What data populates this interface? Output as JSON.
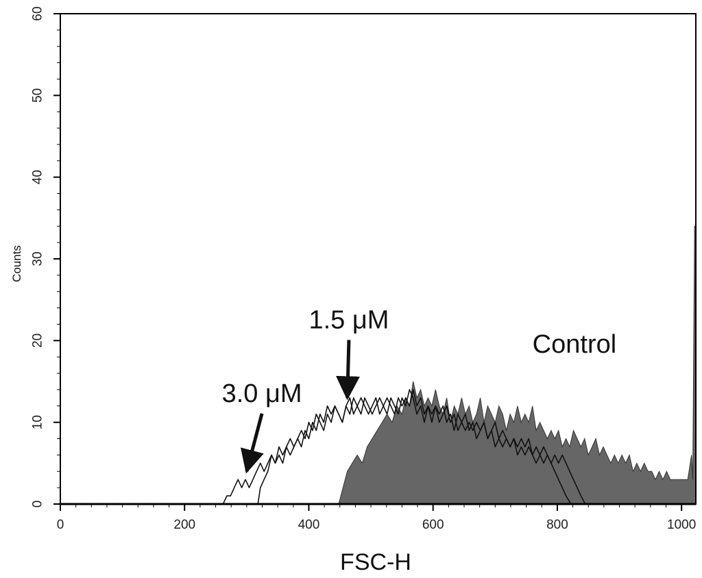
{
  "chart_data": {
    "type": "area",
    "xlabel": "FSC-H",
    "ylabel": "Counts",
    "xlim": [
      0,
      1023
    ],
    "ylim": [
      0,
      60
    ],
    "x_ticks": [
      0,
      200,
      400,
      600,
      800,
      1000
    ],
    "y_ticks": [
      0,
      10,
      20,
      30,
      40,
      50,
      60
    ],
    "grid": false,
    "legend": "none",
    "series": [
      {
        "name": "Control",
        "style": "filled",
        "color": "#666666",
        "points": [
          [
            448,
            0
          ],
          [
            455,
            2
          ],
          [
            462,
            4
          ],
          [
            470,
            5
          ],
          [
            478,
            6
          ],
          [
            486,
            5
          ],
          [
            494,
            7
          ],
          [
            502,
            8
          ],
          [
            510,
            9
          ],
          [
            518,
            10
          ],
          [
            526,
            11
          ],
          [
            534,
            10
          ],
          [
            542,
            12
          ],
          [
            550,
            11
          ],
          [
            556,
            13
          ],
          [
            562,
            12
          ],
          [
            568,
            15
          ],
          [
            574,
            13
          ],
          [
            580,
            14
          ],
          [
            586,
            12
          ],
          [
            592,
            13
          ],
          [
            598,
            12
          ],
          [
            604,
            14
          ],
          [
            610,
            12
          ],
          [
            616,
            11
          ],
          [
            622,
            13
          ],
          [
            628,
            10
          ],
          [
            634,
            12
          ],
          [
            640,
            11
          ],
          [
            646,
            13
          ],
          [
            652,
            11
          ],
          [
            658,
            12
          ],
          [
            664,
            10
          ],
          [
            670,
            11
          ],
          [
            676,
            13
          ],
          [
            682,
            10
          ],
          [
            688,
            12
          ],
          [
            694,
            11
          ],
          [
            700,
            10
          ],
          [
            706,
            12
          ],
          [
            712,
            11
          ],
          [
            718,
            9
          ],
          [
            724,
            11
          ],
          [
            730,
            10
          ],
          [
            736,
            12
          ],
          [
            742,
            10
          ],
          [
            748,
            11
          ],
          [
            754,
            10
          ],
          [
            760,
            12
          ],
          [
            766,
            9
          ],
          [
            772,
            10
          ],
          [
            778,
            9
          ],
          [
            784,
            8
          ],
          [
            790,
            9
          ],
          [
            796,
            8
          ],
          [
            802,
            9
          ],
          [
            808,
            7
          ],
          [
            814,
            8
          ],
          [
            820,
            7
          ],
          [
            826,
            9
          ],
          [
            832,
            8
          ],
          [
            838,
            7
          ],
          [
            844,
            8
          ],
          [
            850,
            6
          ],
          [
            856,
            7
          ],
          [
            862,
            8
          ],
          [
            868,
            6
          ],
          [
            874,
            7
          ],
          [
            880,
            6
          ],
          [
            886,
            5
          ],
          [
            892,
            6
          ],
          [
            898,
            5
          ],
          [
            904,
            6
          ],
          [
            910,
            5
          ],
          [
            916,
            6
          ],
          [
            922,
            4
          ],
          [
            928,
            5
          ],
          [
            934,
            4
          ],
          [
            940,
            5
          ],
          [
            946,
            4
          ],
          [
            952,
            4
          ],
          [
            958,
            3
          ],
          [
            964,
            4
          ],
          [
            970,
            3
          ],
          [
            976,
            4
          ],
          [
            982,
            3
          ],
          [
            988,
            3
          ],
          [
            994,
            3
          ],
          [
            1000,
            3
          ],
          [
            1010,
            3
          ],
          [
            1016,
            6
          ],
          [
            1018,
            3
          ],
          [
            1021,
            34
          ],
          [
            1023,
            34
          ],
          [
            1023,
            0
          ]
        ]
      },
      {
        "name": "1.5 μM",
        "style": "line",
        "color": "#111111",
        "points": [
          [
            318,
            0
          ],
          [
            322,
            2
          ],
          [
            328,
            3
          ],
          [
            334,
            4
          ],
          [
            340,
            6
          ],
          [
            346,
            5
          ],
          [
            352,
            7
          ],
          [
            358,
            6
          ],
          [
            364,
            7
          ],
          [
            370,
            8
          ],
          [
            376,
            7
          ],
          [
            382,
            8
          ],
          [
            388,
            9
          ],
          [
            394,
            8
          ],
          [
            400,
            10
          ],
          [
            406,
            9
          ],
          [
            412,
            11
          ],
          [
            418,
            10
          ],
          [
            424,
            9
          ],
          [
            430,
            11
          ],
          [
            436,
            10
          ],
          [
            442,
            12
          ],
          [
            448,
            11
          ],
          [
            454,
            10
          ],
          [
            460,
            12
          ],
          [
            466,
            13
          ],
          [
            472,
            11
          ],
          [
            478,
            12
          ],
          [
            484,
            13
          ],
          [
            490,
            12
          ],
          [
            496,
            11
          ],
          [
            502,
            12
          ],
          [
            508,
            13
          ],
          [
            514,
            11
          ],
          [
            520,
            12
          ],
          [
            526,
            13
          ],
          [
            532,
            12
          ],
          [
            538,
            11
          ],
          [
            544,
            13
          ],
          [
            550,
            12
          ],
          [
            556,
            13
          ],
          [
            562,
            12
          ],
          [
            568,
            14
          ],
          [
            574,
            12
          ],
          [
            580,
            13
          ],
          [
            586,
            11
          ],
          [
            592,
            12
          ],
          [
            598,
            10
          ],
          [
            604,
            12
          ],
          [
            610,
            11
          ],
          [
            616,
            12
          ],
          [
            622,
            10
          ],
          [
            628,
            11
          ],
          [
            634,
            9
          ],
          [
            640,
            11
          ],
          [
            646,
            10
          ],
          [
            652,
            9
          ],
          [
            658,
            10
          ],
          [
            664,
            9
          ],
          [
            670,
            10
          ],
          [
            676,
            9
          ],
          [
            682,
            10
          ],
          [
            688,
            8
          ],
          [
            694,
            9
          ],
          [
            700,
            10
          ],
          [
            706,
            8
          ],
          [
            712,
            9
          ],
          [
            718,
            8
          ],
          [
            724,
            7
          ],
          [
            730,
            8
          ],
          [
            736,
            7
          ],
          [
            742,
            8
          ],
          [
            748,
            7
          ],
          [
            754,
            8
          ],
          [
            760,
            6
          ],
          [
            766,
            7
          ],
          [
            772,
            6
          ],
          [
            778,
            7
          ],
          [
            784,
            6
          ],
          [
            790,
            5
          ],
          [
            796,
            6
          ],
          [
            802,
            5
          ],
          [
            808,
            6
          ],
          [
            814,
            5
          ],
          [
            820,
            4
          ],
          [
            826,
            3
          ],
          [
            832,
            2
          ],
          [
            838,
            1
          ],
          [
            845,
            0
          ]
        ]
      },
      {
        "name": "3.0 μM",
        "style": "line",
        "color": "#111111",
        "points": [
          [
            262,
            0
          ],
          [
            268,
            1
          ],
          [
            274,
            1
          ],
          [
            280,
            2
          ],
          [
            286,
            3
          ],
          [
            292,
            2
          ],
          [
            298,
            3
          ],
          [
            304,
            2
          ],
          [
            310,
            3
          ],
          [
            316,
            4
          ],
          [
            322,
            5
          ],
          [
            328,
            4
          ],
          [
            334,
            5
          ],
          [
            340,
            6
          ],
          [
            346,
            5
          ],
          [
            352,
            6
          ],
          [
            358,
            5
          ],
          [
            364,
            7
          ],
          [
            370,
            6
          ],
          [
            376,
            7
          ],
          [
            382,
            8
          ],
          [
            388,
            7
          ],
          [
            394,
            9
          ],
          [
            400,
            8
          ],
          [
            406,
            10
          ],
          [
            412,
            9
          ],
          [
            418,
            11
          ],
          [
            424,
            10
          ],
          [
            430,
            12
          ],
          [
            436,
            11
          ],
          [
            442,
            12
          ],
          [
            448,
            11
          ],
          [
            454,
            10
          ],
          [
            460,
            12
          ],
          [
            466,
            11
          ],
          [
            472,
            13
          ],
          [
            478,
            12
          ],
          [
            484,
            11
          ],
          [
            490,
            13
          ],
          [
            496,
            12
          ],
          [
            502,
            11
          ],
          [
            508,
            12
          ],
          [
            514,
            13
          ],
          [
            520,
            12
          ],
          [
            526,
            11
          ],
          [
            532,
            13
          ],
          [
            538,
            12
          ],
          [
            544,
            11
          ],
          [
            550,
            13
          ],
          [
            556,
            12
          ],
          [
            562,
            14
          ],
          [
            568,
            13
          ],
          [
            574,
            11
          ],
          [
            580,
            12
          ],
          [
            586,
            10
          ],
          [
            592,
            12
          ],
          [
            598,
            11
          ],
          [
            604,
            12
          ],
          [
            610,
            10
          ],
          [
            616,
            11
          ],
          [
            622,
            12
          ],
          [
            628,
            10
          ],
          [
            634,
            11
          ],
          [
            640,
            9
          ],
          [
            646,
            10
          ],
          [
            652,
            11
          ],
          [
            658,
            9
          ],
          [
            664,
            10
          ],
          [
            670,
            8
          ],
          [
            676,
            9
          ],
          [
            682,
            10
          ],
          [
            688,
            8
          ],
          [
            694,
            9
          ],
          [
            700,
            7
          ],
          [
            706,
            8
          ],
          [
            712,
            7
          ],
          [
            718,
            8
          ],
          [
            724,
            7
          ],
          [
            730,
            8
          ],
          [
            736,
            6
          ],
          [
            742,
            7
          ],
          [
            748,
            6
          ],
          [
            754,
            7
          ],
          [
            760,
            6
          ],
          [
            766,
            5
          ],
          [
            772,
            6
          ],
          [
            778,
            5
          ],
          [
            784,
            6
          ],
          [
            790,
            5
          ],
          [
            796,
            4
          ],
          [
            802,
            3
          ],
          [
            808,
            2
          ],
          [
            814,
            1
          ],
          [
            822,
            0
          ]
        ]
      }
    ],
    "annotations": [
      {
        "text": "1.5 μM",
        "x": 400,
        "y": 21.5,
        "arrow_to": [
          462,
          13
        ]
      },
      {
        "text": "3.0 μM",
        "x": 260,
        "y": 12.5,
        "arrow_to": [
          300,
          4
        ]
      },
      {
        "text": "Control",
        "x": 760,
        "y": 18.5
      }
    ]
  }
}
